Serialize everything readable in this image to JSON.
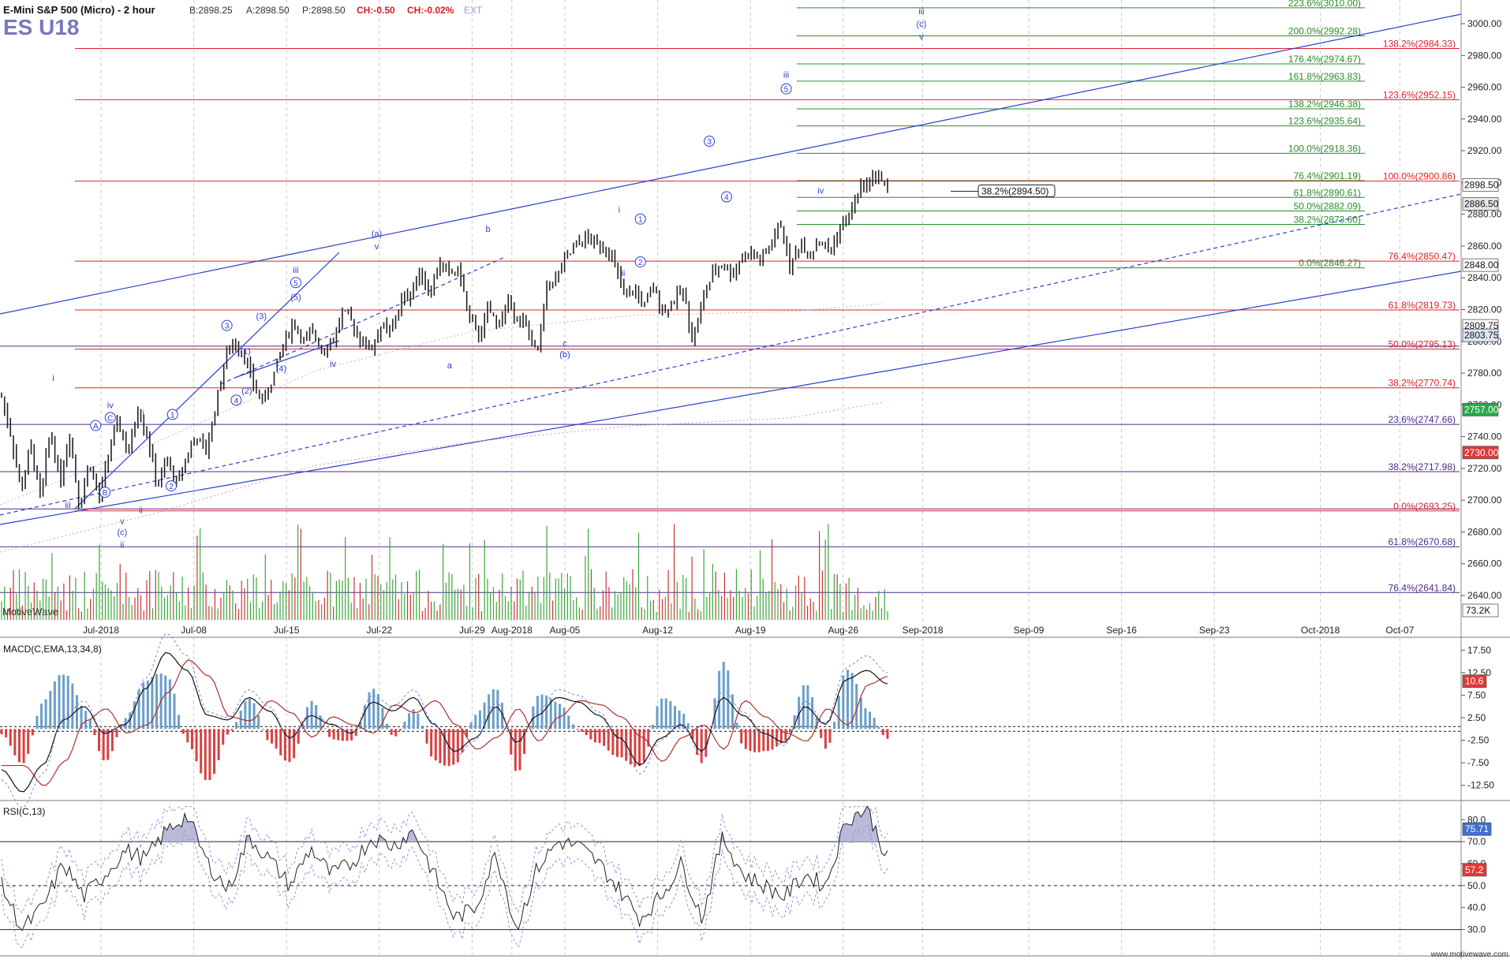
{
  "header": {
    "symbol_title": "E-Mini S&P 500 (Micro) - 2 hour",
    "bid": "B:2898.25",
    "ask": "A:2898.50",
    "price": "P:2898.50",
    "change": "CH:-0.50",
    "change_pct": "CH:-0.02%",
    "ext": "EXT",
    "ticker": "ES U18"
  },
  "watermark": "MotiveWave",
  "footer": "www.motivewave.com",
  "colors": {
    "fib_red": "#e0202a",
    "fib_green": "#2a8c2a",
    "fib_purple": "#4b2a8c",
    "wave_blue": "#2a3fd0",
    "candle": "#222222",
    "volume_up": "#3aa83a",
    "volume_down": "#cc3333",
    "macd_hist_pos": "#6a9ec8",
    "macd_hist_neg": "#d84040",
    "rsi_fill": "#b8b8d8"
  },
  "chart_data": [
    {
      "type": "candlestick",
      "title": "E-Mini S&P 500 (Micro) - 2 hour",
      "ylim": [
        2620,
        3010
      ],
      "y_ticks": [
        2640,
        2660,
        2680,
        2700,
        2720,
        2740,
        2760,
        2780,
        2800,
        2820,
        2840,
        2860,
        2880,
        2900,
        2920,
        2940,
        2960,
        2980,
        3000
      ],
      "x_tick_labels": [
        "Jul-2018",
        "Jul-08",
        "Jul-15",
        "Jul-22",
        "Jul-29",
        "Aug-2018",
        "Aug-05",
        "Aug-12",
        "Aug-19",
        "Aug-26",
        "Sep-2018",
        "Sep-09",
        "Sep-16",
        "Sep-23",
        "Oct-2018",
        "Oct-07"
      ],
      "price_path": [
        2765,
        2740,
        2705,
        2735,
        2700,
        2745,
        2712,
        2742,
        2695,
        2725,
        2700,
        2730,
        2750,
        2728,
        2758,
        2740,
        2708,
        2725,
        2710,
        2728,
        2740,
        2730,
        2760,
        2790,
        2800,
        2790,
        2770,
        2762,
        2780,
        2800,
        2812,
        2800,
        2805,
        2795,
        2800,
        2818,
        2812,
        2800,
        2795,
        2810,
        2805,
        2825,
        2830,
        2845,
        2830,
        2850,
        2842,
        2845,
        2815,
        2803,
        2820,
        2810,
        2825,
        2815,
        2808,
        2790,
        2835,
        2840,
        2852,
        2860,
        2865,
        2862,
        2860,
        2848,
        2826,
        2833,
        2822,
        2834,
        2818,
        2826,
        2832,
        2800,
        2826,
        2842,
        2849,
        2842,
        2853,
        2855,
        2851,
        2860,
        2875,
        2846,
        2862,
        2855,
        2864,
        2856,
        2870,
        2878,
        2895,
        2900,
        2906,
        2894
      ],
      "current_price_labels": [
        "2898.50",
        "2886.50",
        "2848.00",
        "2809.75",
        "2803.75",
        "2757.00",
        "2730.00",
        "73.2K"
      ],
      "fib_lines": [
        {
          "label": "223.6%(3010.00)",
          "value": 3010.0,
          "color": "green"
        },
        {
          "label": "200.0%(2992.28)",
          "value": 2992.28,
          "color": "green"
        },
        {
          "label": "176.4%(2974.67)",
          "value": 2974.67,
          "color": "green"
        },
        {
          "label": "161.8%(2963.83)",
          "value": 2963.83,
          "color": "green"
        },
        {
          "label": "138.2%(2946.38)",
          "value": 2946.38,
          "color": "green"
        },
        {
          "label": "123.6%(2935.64)",
          "value": 2935.64,
          "color": "green"
        },
        {
          "label": "100.0%(2918.36)",
          "value": 2918.36,
          "color": "green"
        },
        {
          "label": "76.4%(2901.19)",
          "value": 2901.19,
          "color": "green"
        },
        {
          "label": "61.8%(2890.61)",
          "value": 2890.61,
          "color": "green"
        },
        {
          "label": "50.0%(2882.09)",
          "value": 2882.09,
          "color": "green"
        },
        {
          "label": "38.2%(2873.60)",
          "value": 2873.6,
          "color": "green"
        },
        {
          "label": "0.0%(2846.27)",
          "value": 2846.27,
          "color": "green"
        },
        {
          "label": "138.2%(2984.33)",
          "value": 2984.33,
          "color": "red"
        },
        {
          "label": "123.6%(2952.15)",
          "value": 2952.15,
          "color": "red"
        },
        {
          "label": "100.0%(2900.86)",
          "value": 2900.86,
          "color": "red"
        },
        {
          "label": "76.4%(2850.47)",
          "value": 2850.47,
          "color": "red"
        },
        {
          "label": "61.8%(2819.73)",
          "value": 2819.73,
          "color": "red"
        },
        {
          "label": "50.0%(2795.13)",
          "value": 2795.13,
          "color": "red"
        },
        {
          "label": "38.2%(2770.74)",
          "value": 2770.74,
          "color": "red"
        },
        {
          "label": "0.0%(2693.25)",
          "value": 2693.25,
          "color": "red"
        },
        {
          "label": "23.6%(2747.66)",
          "value": 2747.66,
          "color": "purple"
        },
        {
          "label": "38.2%(2717.98)",
          "value": 2717.98,
          "color": "purple"
        },
        {
          "label": "61.8%(2670.68)",
          "value": 2670.68,
          "color": "purple"
        },
        {
          "label": "76.4%(2641.84)",
          "value": 2641.84,
          "color": "purple"
        }
      ],
      "callout": {
        "label": "38.2%(2894.50)",
        "value": 2894.5
      },
      "wave_labels": [
        {
          "text": "i",
          "day": -3.6,
          "price": 2775
        },
        {
          "text": "iii",
          "day": -2.5,
          "price": 2695
        },
        {
          "text": "A",
          "day": -0.4,
          "price": 2745
        },
        {
          "text": "iv",
          "day": 0.7,
          "price": 2758
        },
        {
          "text": "C",
          "day": 0.7,
          "price": 2750
        },
        {
          "text": "B",
          "day": 0.3,
          "price": 2703
        },
        {
          "text": "v",
          "day": 1.6,
          "price": 2685
        },
        {
          "text": "(c)",
          "day": 1.6,
          "price": 2678
        },
        {
          "text": "ii",
          "day": 1.6,
          "price": 2670
        },
        {
          "text": "ii",
          "day": 3.0,
          "price": 2692
        },
        {
          "text": "i",
          "day": 3.2,
          "price": 2753
        },
        {
          "text": "1",
          "day": 5.4,
          "price": 2752
        },
        {
          "text": "2",
          "day": 5.3,
          "price": 2707
        },
        {
          "text": "3",
          "day": 9.5,
          "price": 2808
        },
        {
          "text": "4",
          "day": 10.2,
          "price": 2761
        },
        {
          "text": "(1)",
          "day": 10.9,
          "price": 2792
        },
        {
          "text": "(2)",
          "day": 11.0,
          "price": 2767
        },
        {
          "text": "(3)",
          "day": 12.1,
          "price": 2814
        },
        {
          "text": "(4)",
          "day": 13.6,
          "price": 2781
        },
        {
          "text": "iii",
          "day": 14.7,
          "price": 2843
        },
        {
          "text": "5",
          "day": 14.7,
          "price": 2835
        },
        {
          "text": "(5)",
          "day": 14.7,
          "price": 2826
        },
        {
          "text": "iv",
          "day": 17.5,
          "price": 2784
        },
        {
          "text": "(a)",
          "day": 20.8,
          "price": 2866
        },
        {
          "text": "v",
          "day": 20.8,
          "price": 2858
        },
        {
          "text": "a",
          "day": 26.3,
          "price": 2783
        },
        {
          "text": "b",
          "day": 29.2,
          "price": 2869
        },
        {
          "text": "c",
          "day": 35.0,
          "price": 2797
        },
        {
          "text": "(b)",
          "day": 35.0,
          "price": 2790
        },
        {
          "text": "i",
          "day": 39.1,
          "price": 2881
        },
        {
          "text": "ii",
          "day": 39.4,
          "price": 2841
        },
        {
          "text": "1",
          "day": 40.7,
          "price": 2875
        },
        {
          "text": "2",
          "day": 40.7,
          "price": 2848
        },
        {
          "text": "3",
          "day": 45.9,
          "price": 2924
        },
        {
          "text": "4",
          "day": 47.2,
          "price": 2889
        },
        {
          "text": "iv",
          "day": 54.3,
          "price": 2893
        },
        {
          "text": "iii",
          "day": 51.7,
          "price": 2966
        },
        {
          "text": "5",
          "day": 51.7,
          "price": 2957
        },
        {
          "text": "iii",
          "day": 61.9,
          "price": 3006
        },
        {
          "text": "(c)",
          "day": 61.9,
          "price": 2998
        },
        {
          "text": "v",
          "day": 61.9,
          "price": 2990
        }
      ]
    },
    {
      "type": "line",
      "title": "MACD(C,EMA,13,34,8)",
      "ylim": [
        -15,
        20
      ],
      "y_ticks": [
        -12.5,
        -7.5,
        -2.5,
        2.5,
        7.5,
        12.5,
        17.5
      ],
      "current_value_label": "10.6",
      "macd_path": [
        -9,
        -14,
        -8,
        2,
        5,
        -1,
        1,
        9,
        17,
        13,
        3,
        2,
        7,
        4,
        -2,
        3,
        1,
        -1,
        6,
        4,
        7,
        1,
        -5,
        -2,
        5,
        -3,
        3,
        7,
        6,
        3,
        -2,
        -8,
        -2,
        1,
        -5,
        7,
        3,
        -1,
        -3,
        5,
        1,
        11,
        13,
        10
      ]
    },
    {
      "type": "line",
      "title": "RSI(C,13)",
      "ylim": [
        18,
        88
      ],
      "y_ticks": [
        30,
        40,
        50,
        60,
        70,
        80
      ],
      "current_value_labels": [
        "75.71",
        "57.2"
      ],
      "rsi_path": [
        50,
        30,
        40,
        60,
        45,
        55,
        66,
        62,
        75,
        82,
        60,
        48,
        72,
        62,
        50,
        67,
        55,
        60,
        72,
        68,
        75,
        55,
        35,
        40,
        65,
        30,
        58,
        70,
        68,
        60,
        48,
        35,
        45,
        60,
        35,
        72,
        55,
        50,
        45,
        55,
        50,
        80,
        85,
        62
      ]
    }
  ]
}
